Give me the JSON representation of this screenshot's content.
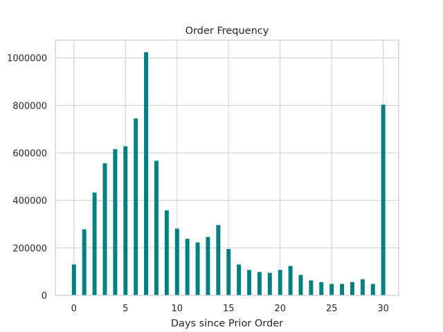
{
  "chart_data": {
    "type": "bar",
    "title": "Order Frequency",
    "xlabel": "Days since Prior Order",
    "ylabel": "",
    "x": [
      0,
      1,
      2,
      3,
      4,
      5,
      6,
      7,
      8,
      9,
      10,
      11,
      12,
      13,
      14,
      15,
      16,
      17,
      18,
      19,
      20,
      21,
      22,
      23,
      24,
      25,
      26,
      27,
      28,
      29,
      30
    ],
    "values": [
      130000,
      278000,
      433000,
      556000,
      616000,
      628000,
      745000,
      1024000,
      567000,
      358000,
      281000,
      238000,
      223000,
      246000,
      296000,
      195000,
      130000,
      107000,
      98000,
      95000,
      107000,
      124000,
      86000,
      63000,
      56000,
      48000,
      48000,
      56000,
      68000,
      48000,
      803000
    ],
    "xlim": [
      -1.8,
      31.5
    ],
    "ylim": [
      0,
      1075000
    ],
    "xticks": [
      0,
      5,
      10,
      15,
      20,
      25,
      30
    ],
    "xtick_labels": [
      "0",
      "5",
      "10",
      "15",
      "20",
      "25",
      "30"
    ],
    "yticks": [
      0,
      200000,
      400000,
      600000,
      800000,
      1000000
    ],
    "ytick_labels": [
      "0",
      "200000",
      "400000",
      "600000",
      "800000",
      "1000000"
    ],
    "grid": true,
    "bar_color": "#008080",
    "grid_color": "#cccccc",
    "bar_width": 0.4
  }
}
